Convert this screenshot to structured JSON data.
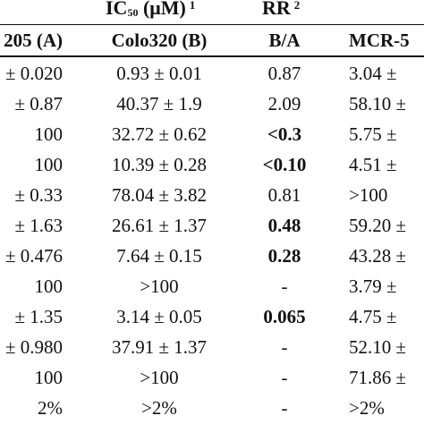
{
  "header": {
    "ic50_main": "IC",
    "ic50_sub": "50",
    "ic50_tail": " (μM)",
    "ic50_sup": "1",
    "rr_main": "RR",
    "rr_sup": "2"
  },
  "columns": [
    "205 (A)",
    "Colo320 (B)",
    "B/A",
    "MCR-5"
  ],
  "rows": [
    {
      "c0": "± 0.020",
      "c1": "0.93 ± 0.01",
      "c2": "0.87",
      "c2_bold": false,
      "c3": "3.04 ±"
    },
    {
      "c0": "± 0.87",
      "c1": "40.37 ± 1.9",
      "c2": "2.09",
      "c2_bold": false,
      "c3": "58.10 ±"
    },
    {
      "c0": "100",
      "c1": "32.72 ± 0.62",
      "c2": "<0.3",
      "c2_bold": true,
      "c3": "5.75 ±"
    },
    {
      "c0": "100",
      "c1": "10.39 ± 0.28",
      "c2": "<0.10",
      "c2_bold": true,
      "c3": "4.51 ±"
    },
    {
      "c0": "± 0.33",
      "c1": "78.04 ± 3.82",
      "c2": "0.81",
      "c2_bold": false,
      "c3": ">100"
    },
    {
      "c0": "± 1.63",
      "c1": "26.61 ± 1.37",
      "c2": "0.48",
      "c2_bold": true,
      "c3": "59.20 ±"
    },
    {
      "c0": "± 0.476",
      "c1": "7.64 ± 0.15",
      "c2": "0.28",
      "c2_bold": true,
      "c3": "43.28 ±"
    },
    {
      "c0": "100",
      "c1": ">100",
      "c2": "-",
      "c2_bold": false,
      "c3": "3.79 ±"
    },
    {
      "c0": "± 1.35",
      "c1": "3.14 ± 0.05",
      "c2": "0.065",
      "c2_bold": true,
      "c3": "4.75 ±"
    },
    {
      "c0": "± 0.980",
      "c1": "37.91 ± 1.37",
      "c2": "-",
      "c2_bold": false,
      "c3": "52.10 ±"
    },
    {
      "c0": "100",
      "c1": ">100",
      "c2": "-",
      "c2_bold": false,
      "c3": "71.86 ±"
    },
    {
      "c0": "2%",
      "c1": ">2%",
      "c2": "-",
      "c2_bold": false,
      "c3": ">2%"
    }
  ]
}
